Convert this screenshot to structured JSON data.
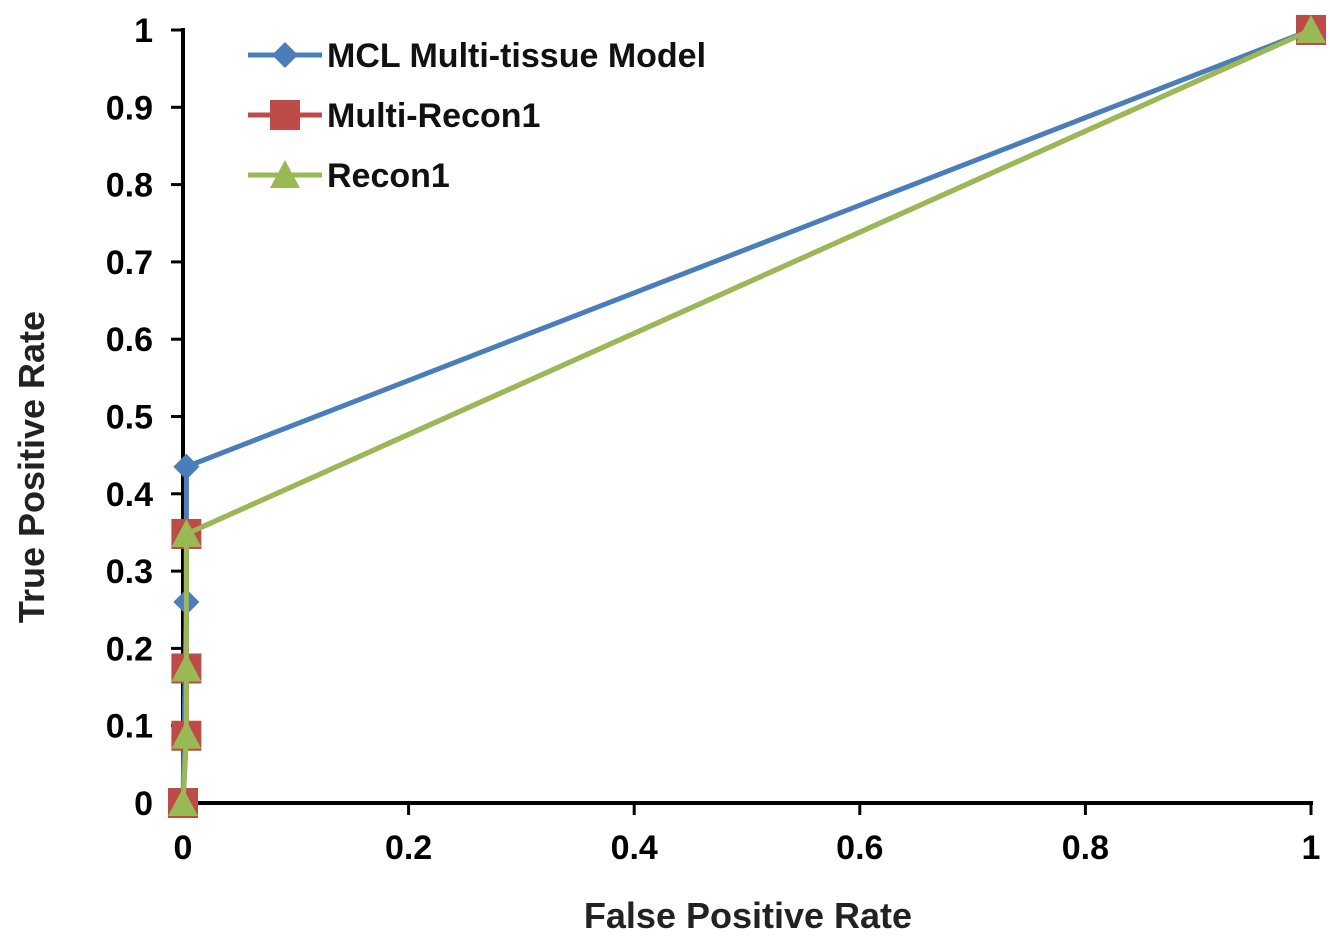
{
  "chart_data": {
    "type": "line",
    "title": "",
    "xlabel": "False Positive Rate",
    "ylabel": "True Positive Rate",
    "xlim": [
      0,
      1
    ],
    "ylim": [
      0,
      1
    ],
    "xticks": [
      "0",
      "0.2",
      "0.4",
      "0.6",
      "0.8",
      "1"
    ],
    "yticks": [
      "0",
      "0.1",
      "0.2",
      "0.3",
      "0.4",
      "0.5",
      "0.6",
      "0.7",
      "0.8",
      "0.9",
      "1"
    ],
    "grid": false,
    "legend_position": "top-left",
    "series": [
      {
        "name": "MCL Multi-tissue Model",
        "color": "#4a7ebb",
        "marker": "diamond",
        "points": [
          [
            0,
            0
          ],
          [
            0.003,
            0.26
          ],
          [
            0.003,
            0.435
          ],
          [
            1,
            1
          ]
        ]
      },
      {
        "name": "Multi-Recon1",
        "color": "#be4b48",
        "marker": "square",
        "points": [
          [
            0,
            0
          ],
          [
            0.003,
            0.087
          ],
          [
            0.003,
            0.174
          ],
          [
            0.003,
            0.348
          ],
          [
            1,
            1
          ]
        ]
      },
      {
        "name": "Recon1",
        "color": "#98b954",
        "marker": "triangle",
        "points": [
          [
            0,
            0
          ],
          [
            0.003,
            0.087
          ],
          [
            0.003,
            0.174
          ],
          [
            0.003,
            0.348
          ],
          [
            1,
            1
          ]
        ]
      }
    ]
  }
}
